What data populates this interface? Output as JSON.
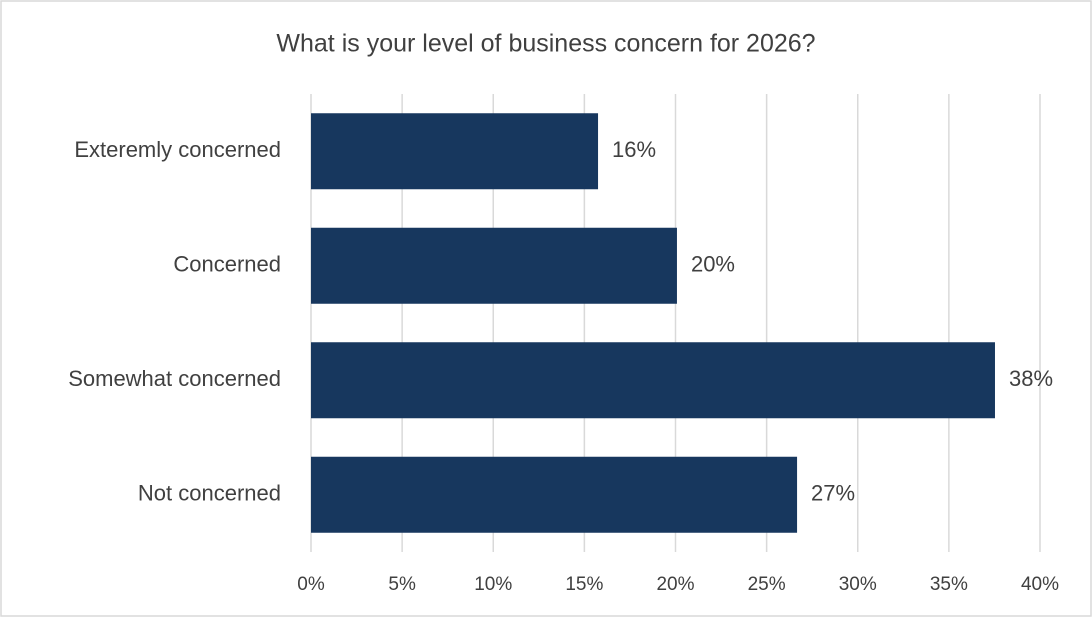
{
  "chart_data": {
    "type": "barh",
    "title": "What is your level of business concern for 2026?",
    "categories": [
      "Exteremly concerned",
      "Concerned",
      "Somewhat concerned",
      "Not concerned"
    ],
    "values": [
      15.75,
      20.08,
      37.53,
      26.67
    ],
    "value_labels": [
      "16%",
      "20%",
      "38%",
      "27%"
    ],
    "color": "#17375e",
    "xlim": [
      0,
      40
    ],
    "xticks": [
      {
        "value": 0,
        "label": "0%"
      },
      {
        "value": 5,
        "label": "5%"
      },
      {
        "value": 10,
        "label": "10%"
      },
      {
        "value": 15,
        "label": "15%"
      },
      {
        "value": 20,
        "label": "20%"
      },
      {
        "value": 25,
        "label": "25%"
      },
      {
        "value": 30,
        "label": "30%"
      },
      {
        "value": 35,
        "label": "35%"
      },
      {
        "value": 40,
        "label": "40%"
      }
    ],
    "grid": true
  }
}
